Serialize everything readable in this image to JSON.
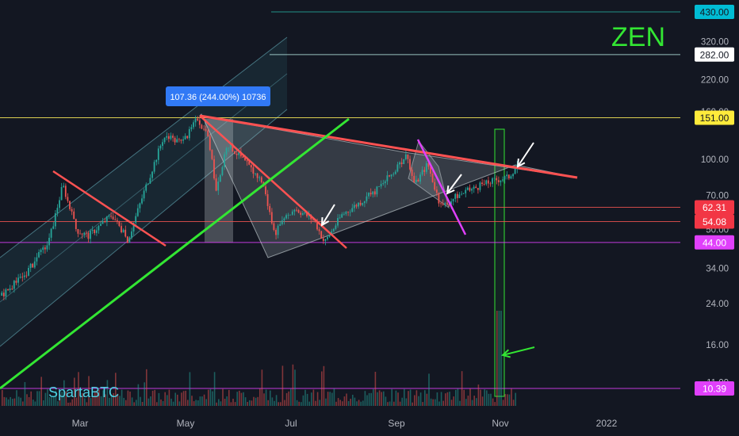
{
  "symbol": "ZEN",
  "watermark": "SpartaBTC",
  "measure_label": "107.36 (244.00%) 10736",
  "colors": {
    "background": "#131722",
    "up_candle": "#26a69a",
    "down_candle": "#ef5350",
    "resistance_line": "#ff5252",
    "support_line": "#33e633",
    "wedge_line": "#e040fb",
    "symbol_color": "#33e633",
    "watermark_color": "#4dd0e1",
    "measure_box": "#3179f5",
    "arrow_white": "#ffffff",
    "arrow_green": "#33e633"
  },
  "chart_data": {
    "type": "candlestick",
    "y_scale": "log",
    "x_axis": {
      "ticks": [
        "Mar",
        "May",
        "Jul",
        "Sep",
        "Nov",
        "2022"
      ]
    },
    "y_axis": {
      "ticks": [
        "430.00",
        "320.00",
        "220.00",
        "160.00",
        "100.00",
        "70.00",
        "50.00",
        "34.00",
        "24.00",
        "16.00",
        "11.00"
      ],
      "tick_values": [
        430,
        320,
        220,
        160,
        100,
        70,
        50,
        34,
        24,
        16,
        11
      ],
      "range": [
        8.6,
        470
      ]
    },
    "price_levels": [
      {
        "label": "430.00",
        "value": 430,
        "color": "#00bcd4",
        "text_color": "#131722",
        "line_color": "#26a69a"
      },
      {
        "label": "282.00",
        "value": 282,
        "color": "#ffffff",
        "text_color": "#131722",
        "line_color": "#b2dfdb"
      },
      {
        "label": "151.00",
        "value": 151,
        "color": "#ffeb3b",
        "text_color": "#131722",
        "line_color": "#ffee58"
      },
      {
        "label": "62.31",
        "value": 62.31,
        "color": "#f23645",
        "text_color": "#ffffff",
        "line_color": "#ef5350"
      },
      {
        "label": "54.08",
        "value": 54.08,
        "color": "#f23645",
        "text_color": "#ffffff",
        "line_color": "#ef5350"
      },
      {
        "label": "44.00",
        "value": 44,
        "color": "#e040fb",
        "text_color": "#ffffff",
        "line_color": "#e040fb"
      },
      {
        "label": "10.39",
        "value": 10.39,
        "color": "#e040fb",
        "text_color": "#ffffff",
        "line_color": "#e040fb"
      }
    ],
    "key_prices": {
      "start": 26,
      "early_peak": 78,
      "early_low": 45,
      "may_high": 151,
      "june_low": 48,
      "july_low": 44,
      "sep_high": 105,
      "sep_low": 62,
      "last": 96
    }
  }
}
